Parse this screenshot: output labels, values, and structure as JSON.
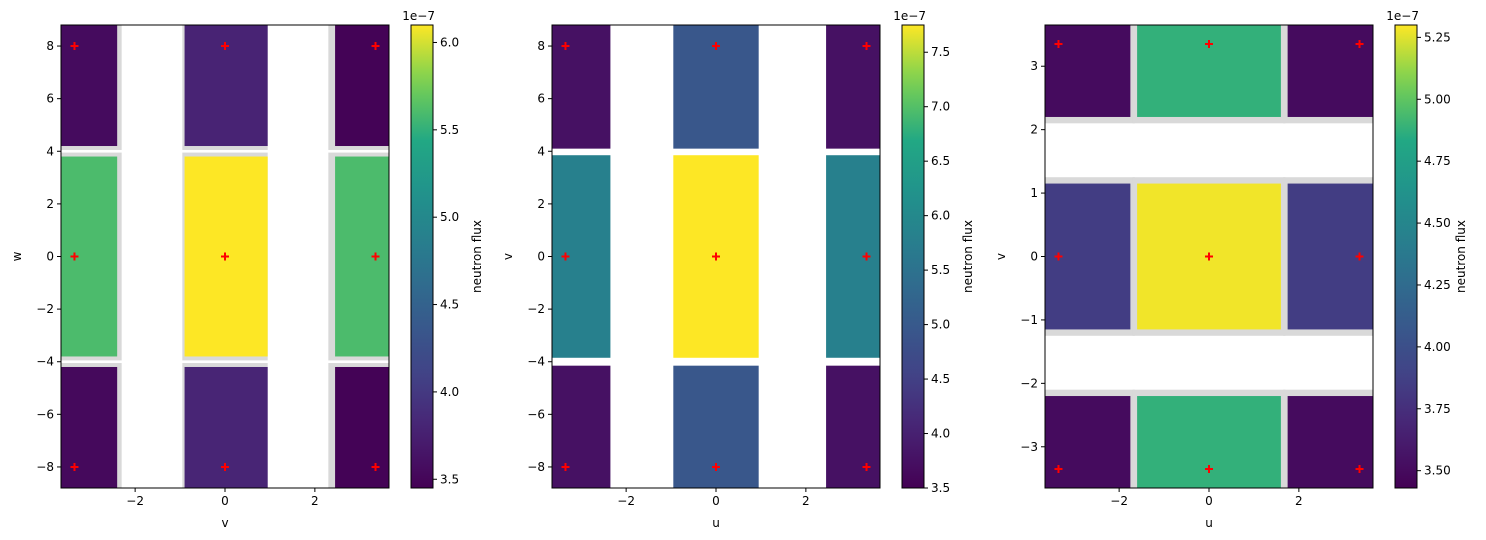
{
  "chart_data": [
    {
      "type": "heatmap",
      "xlabel": "v",
      "ylabel": "w",
      "xlim": [
        -3.65,
        3.65
      ],
      "ylim": [
        -8.8,
        8.8
      ],
      "xticks": [
        -2,
        0,
        2
      ],
      "xtick_labels": [
        "−2",
        "0",
        "2"
      ],
      "yticks": [
        -8,
        -6,
        -4,
        -2,
        0,
        2,
        4,
        6,
        8
      ],
      "ytick_labels": [
        "−8",
        "−6",
        "−4",
        "−2",
        "0",
        "2",
        "4",
        "6",
        "8"
      ],
      "frame_cells": [
        {
          "x0": -3.65,
          "x1": -2.3,
          "y0": 4.05,
          "y1": 8.8
        },
        {
          "x0": -0.95,
          "x1": 0.95,
          "y0": 4.05,
          "y1": 8.8
        },
        {
          "x0": 2.3,
          "x1": 3.65,
          "y0": 4.05,
          "y1": 8.8
        },
        {
          "x0": -3.65,
          "x1": -2.3,
          "y0": -3.95,
          "y1": 3.95
        },
        {
          "x0": -0.95,
          "x1": 0.95,
          "y0": -3.95,
          "y1": 3.95
        },
        {
          "x0": 2.3,
          "x1": 3.65,
          "y0": -3.95,
          "y1": 3.95
        },
        {
          "x0": -3.65,
          "x1": -2.3,
          "y0": -8.8,
          "y1": -4.05
        },
        {
          "x0": -0.95,
          "x1": 0.95,
          "y0": -8.8,
          "y1": -4.05
        },
        {
          "x0": 2.3,
          "x1": 3.65,
          "y0": -8.8,
          "y1": -4.05
        }
      ],
      "cells": [
        {
          "x0": -3.65,
          "x1": -2.4,
          "y0": 4.2,
          "y1": 8.8,
          "value": 3.55
        },
        {
          "x0": -0.9,
          "x1": 0.95,
          "y0": 4.2,
          "y1": 8.8,
          "value": 3.78
        },
        {
          "x0": 2.45,
          "x1": 3.65,
          "y0": 4.2,
          "y1": 8.8,
          "value": 3.47
        },
        {
          "x0": -3.65,
          "x1": -2.4,
          "y0": -3.8,
          "y1": 3.8,
          "value": 5.6
        },
        {
          "x0": -0.9,
          "x1": 0.95,
          "y0": -3.8,
          "y1": 3.8,
          "value": 6.1
        },
        {
          "x0": 2.45,
          "x1": 3.65,
          "y0": -3.8,
          "y1": 3.8,
          "value": 5.6
        },
        {
          "x0": -3.65,
          "x1": -2.4,
          "y0": -8.8,
          "y1": -4.2,
          "value": 3.53
        },
        {
          "x0": -0.9,
          "x1": 0.95,
          "y0": -8.8,
          "y1": -4.2,
          "value": 3.8
        },
        {
          "x0": 2.45,
          "x1": 3.65,
          "y0": -8.8,
          "y1": -4.2,
          "value": 3.47
        }
      ],
      "markers": [
        {
          "x": -3.35,
          "y": 8
        },
        {
          "x": 0,
          "y": 8
        },
        {
          "x": 3.35,
          "y": 8
        },
        {
          "x": -3.35,
          "y": 0
        },
        {
          "x": 0,
          "y": 0
        },
        {
          "x": 3.35,
          "y": 0
        },
        {
          "x": -3.35,
          "y": -8
        },
        {
          "x": 0,
          "y": -8
        },
        {
          "x": 3.35,
          "y": -8
        }
      ],
      "colorbar": {
        "label": "neutron flux",
        "offset_text": "1e−7",
        "min": 3.45,
        "max": 6.1,
        "ticks": [
          3.5,
          4.0,
          4.5,
          5.0,
          5.5,
          6.0
        ],
        "tick_labels": [
          "3.5",
          "4.0",
          "4.5",
          "5.0",
          "5.5",
          "6.0"
        ]
      }
    },
    {
      "type": "heatmap",
      "xlabel": "u",
      "ylabel": "v",
      "xlim": [
        -3.65,
        3.65
      ],
      "ylim": [
        -8.8,
        8.8
      ],
      "xticks": [
        -2,
        0,
        2
      ],
      "xtick_labels": [
        "−2",
        "0",
        "2"
      ],
      "yticks": [
        -8,
        -6,
        -4,
        -2,
        0,
        2,
        4,
        6,
        8
      ],
      "ytick_labels": [
        "−8",
        "−6",
        "−4",
        "−2",
        "0",
        "2",
        "4",
        "6",
        "8"
      ],
      "frame_cells": [],
      "cells": [
        {
          "x0": -3.65,
          "x1": -2.35,
          "y0": 4.1,
          "y1": 8.8,
          "value": 3.75
        },
        {
          "x0": -0.95,
          "x1": 0.95,
          "y0": 4.1,
          "y1": 8.8,
          "value": 4.95
        },
        {
          "x0": 2.45,
          "x1": 3.65,
          "y0": 4.1,
          "y1": 8.8,
          "value": 3.75
        },
        {
          "x0": -3.65,
          "x1": -2.35,
          "y0": -3.85,
          "y1": 3.85,
          "value": 5.8
        },
        {
          "x0": -0.95,
          "x1": 0.95,
          "y0": -3.85,
          "y1": 3.85,
          "value": 7.75
        },
        {
          "x0": 2.45,
          "x1": 3.65,
          "y0": -3.85,
          "y1": 3.85,
          "value": 5.8
        },
        {
          "x0": -3.65,
          "x1": -2.35,
          "y0": -8.8,
          "y1": -4.15,
          "value": 3.75
        },
        {
          "x0": -0.95,
          "x1": 0.95,
          "y0": -8.8,
          "y1": -4.15,
          "value": 4.95
        },
        {
          "x0": 2.45,
          "x1": 3.65,
          "y0": -8.8,
          "y1": -4.15,
          "value": 3.75
        }
      ],
      "markers": [
        {
          "x": -3.35,
          "y": 8
        },
        {
          "x": 0,
          "y": 8
        },
        {
          "x": 3.35,
          "y": 8
        },
        {
          "x": -3.35,
          "y": 0
        },
        {
          "x": 0,
          "y": 0
        },
        {
          "x": 3.35,
          "y": 0
        },
        {
          "x": -3.35,
          "y": -8
        },
        {
          "x": 0,
          "y": -8
        },
        {
          "x": 3.35,
          "y": -8
        }
      ],
      "colorbar": {
        "label": "neutron flux",
        "offset_text": "1e−7",
        "min": 3.5,
        "max": 7.75,
        "ticks": [
          3.5,
          4.0,
          4.5,
          5.0,
          5.5,
          6.0,
          6.5,
          7.0,
          7.5
        ],
        "tick_labels": [
          "3.5",
          "4.0",
          "4.5",
          "5.0",
          "5.5",
          "6.0",
          "6.5",
          "7.0",
          "7.5"
        ]
      }
    },
    {
      "type": "heatmap",
      "xlabel": "u",
      "ylabel": "v",
      "xlim": [
        -3.65,
        3.65
      ],
      "ylim": [
        -3.65,
        3.65
      ],
      "xticks": [
        -2,
        0,
        2
      ],
      "xtick_labels": [
        "−2",
        "0",
        "2"
      ],
      "yticks": [
        -3,
        -2,
        -1,
        0,
        1,
        2,
        3
      ],
      "ytick_labels": [
        "−3",
        "−2",
        "−1",
        "0",
        "1",
        "2",
        "3"
      ],
      "frame_cells": [
        {
          "x0": -3.65,
          "x1": -1.65,
          "y0": 2.1,
          "y1": 3.65
        },
        {
          "x0": -1.7,
          "x1": 1.7,
          "y0": 2.1,
          "y1": 3.65
        },
        {
          "x0": 1.65,
          "x1": 3.65,
          "y0": 2.1,
          "y1": 3.65
        },
        {
          "x0": -3.65,
          "x1": -1.65,
          "y0": -1.25,
          "y1": 1.25
        },
        {
          "x0": -1.7,
          "x1": 1.7,
          "y0": -1.25,
          "y1": 1.25
        },
        {
          "x0": 1.65,
          "x1": 3.65,
          "y0": -1.25,
          "y1": 1.25
        },
        {
          "x0": -3.65,
          "x1": -1.65,
          "y0": -3.65,
          "y1": -2.1
        },
        {
          "x0": -1.7,
          "x1": 1.7,
          "y0": -3.65,
          "y1": -2.1
        },
        {
          "x0": 1.65,
          "x1": 3.65,
          "y0": -3.65,
          "y1": -2.1
        }
      ],
      "cells": [
        {
          "x0": -3.65,
          "x1": -1.75,
          "y0": 2.2,
          "y1": 3.65,
          "value": 3.5
        },
        {
          "x0": -1.6,
          "x1": 1.6,
          "y0": 2.2,
          "y1": 3.65,
          "value": 4.88
        },
        {
          "x0": 1.75,
          "x1": 3.65,
          "y0": 2.2,
          "y1": 3.65,
          "value": 3.5
        },
        {
          "x0": -3.65,
          "x1": -1.75,
          "y0": -1.15,
          "y1": 1.15,
          "value": 3.85
        },
        {
          "x0": -1.6,
          "x1": 1.6,
          "y0": -1.15,
          "y1": 1.15,
          "value": 5.28
        },
        {
          "x0": 1.75,
          "x1": 3.65,
          "y0": -1.15,
          "y1": 1.15,
          "value": 3.85
        },
        {
          "x0": -3.65,
          "x1": -1.75,
          "y0": -3.65,
          "y1": -2.2,
          "value": 3.5
        },
        {
          "x0": -1.6,
          "x1": 1.6,
          "y0": -3.65,
          "y1": -2.2,
          "value": 4.88
        },
        {
          "x0": 1.75,
          "x1": 3.65,
          "y0": -3.65,
          "y1": -2.2,
          "value": 3.5
        }
      ],
      "markers": [
        {
          "x": -3.35,
          "y": 3.35
        },
        {
          "x": 0,
          "y": 3.35
        },
        {
          "x": 3.35,
          "y": 3.35
        },
        {
          "x": -3.35,
          "y": 0
        },
        {
          "x": 0,
          "y": 0
        },
        {
          "x": 3.35,
          "y": 0
        },
        {
          "x": -3.35,
          "y": -3.35
        },
        {
          "x": 0,
          "y": -3.35
        },
        {
          "x": 3.35,
          "y": -3.35
        }
      ],
      "colorbar": {
        "label": "neutron flux",
        "offset_text": "1e−7",
        "min": 3.43,
        "max": 5.3,
        "ticks": [
          3.5,
          3.75,
          4.0,
          4.25,
          4.5,
          4.75,
          5.0,
          5.25
        ],
        "tick_labels": [
          "3.50",
          "3.75",
          "4.00",
          "4.25",
          "4.50",
          "4.75",
          "5.00",
          "5.25"
        ]
      }
    }
  ],
  "colors": {
    "marker": "#ff0000",
    "frame_cell": "#d9d9d9",
    "axis": "#000000"
  }
}
